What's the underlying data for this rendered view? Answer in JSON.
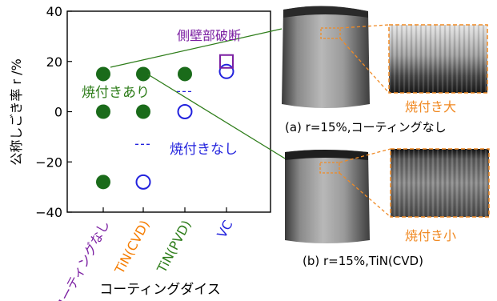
{
  "chart_data": {
    "type": "scatter",
    "ylabel": "公称しごき率 r /%",
    "xlabel": "コーティングダイス",
    "ylim": [
      -40,
      40
    ],
    "yticks": [
      "40",
      "20",
      "0",
      "−20",
      "−40"
    ],
    "ytick_values": [
      40,
      20,
      0,
      -20,
      -40
    ],
    "grid": false,
    "categories": [
      {
        "label": "コーティングなし",
        "color": "#7b1fa2"
      },
      {
        "label": "TiN(CVD)",
        "color": "#f57c00"
      },
      {
        "label": "TiN(PVD)",
        "color": "#2e7d1a"
      },
      {
        "label": "VC",
        "color": "#2222dd"
      }
    ],
    "series": [
      {
        "name": "焼付きあり",
        "marker": "filled-circle",
        "color": "#1a6b1a",
        "points": [
          {
            "x": "コーティングなし",
            "y": 15
          },
          {
            "x": "コーティングなし",
            "y": 0
          },
          {
            "x": "コーティングなし",
            "y": -28
          },
          {
            "x": "TiN(CVD)",
            "y": 15
          },
          {
            "x": "TiN(CVD)",
            "y": 0
          },
          {
            "x": "TiN(PVD)",
            "y": 15
          }
        ]
      },
      {
        "name": "焼付きなし",
        "marker": "open-circle",
        "color": "#2222dd",
        "points": [
          {
            "x": "TiN(CVD)",
            "y": -28
          },
          {
            "x": "TiN(PVD)",
            "y": 0
          },
          {
            "x": "VC",
            "y": 16
          }
        ]
      },
      {
        "name": "側壁部破断",
        "marker": "open-square",
        "color": "#7b1fa2",
        "points": [
          {
            "x": "VC",
            "y": 20
          }
        ]
      }
    ],
    "annotations": {
      "seizure_yes": "焼付きあり",
      "seizure_no": "焼付きなし",
      "wall_fracture": "側壁部破断"
    },
    "boundary_dash_ys": [
      {
        "x": "TiN(PVD)",
        "y": 8
      },
      {
        "x": "TiN(CVD)",
        "y": -13
      }
    ]
  },
  "photos": [
    {
      "zoom_label": "焼付き大",
      "caption": "(a) r=15%,コーティングなし"
    },
    {
      "zoom_label": "焼付き小",
      "caption": "(b) r=15%,TiN(CVD)"
    }
  ],
  "colors": {
    "axis": "#000000",
    "callout_line": "#2e7d1a",
    "zoom_box": "#f08a24",
    "zoom_label": "#f08a24"
  }
}
